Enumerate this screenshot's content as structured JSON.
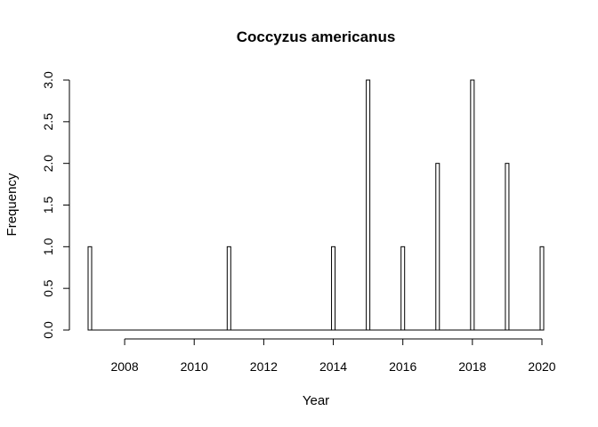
{
  "chart_data": {
    "type": "bar",
    "title": "Coccyzus americanus",
    "xlabel": "Year",
    "ylabel": "Frequency",
    "x_ticks": [
      "2008",
      "2010",
      "2012",
      "2014",
      "2016",
      "2018",
      "2020"
    ],
    "y_ticks": [
      "0.0",
      "0.5",
      "1.0",
      "1.5",
      "2.0",
      "2.5",
      "3.0"
    ],
    "xlim": [
      2007,
      2020
    ],
    "ylim": [
      0,
      3
    ],
    "grid": false,
    "categories": [
      2007,
      2008,
      2009,
      2010,
      2011,
      2012,
      2013,
      2014,
      2015,
      2016,
      2017,
      2018,
      2019,
      2020
    ],
    "values": [
      1,
      0,
      0,
      0,
      1,
      0,
      0,
      1,
      3,
      1,
      2,
      3,
      2,
      1
    ]
  }
}
